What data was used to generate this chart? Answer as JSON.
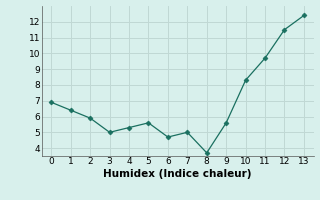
{
  "x": [
    0,
    1,
    2,
    3,
    4,
    5,
    6,
    7,
    8,
    9,
    10,
    11,
    12,
    13
  ],
  "y": [
    6.9,
    6.4,
    5.9,
    5.0,
    5.3,
    5.6,
    4.7,
    5.0,
    3.7,
    5.6,
    8.3,
    9.7,
    11.5,
    12.4
  ],
  "line_color": "#1a7060",
  "marker": "D",
  "marker_size": 2.5,
  "xlabel": "Humidex (Indice chaleur)",
  "ylim": [
    3.5,
    13
  ],
  "xlim": [
    -0.5,
    13.5
  ],
  "yticks": [
    4,
    5,
    6,
    7,
    8,
    9,
    10,
    11,
    12
  ],
  "xticks": [
    0,
    1,
    2,
    3,
    4,
    5,
    6,
    7,
    8,
    9,
    10,
    11,
    12,
    13
  ],
  "bg_color": "#d8f0ec",
  "grid_color": "#c0d8d4",
  "tick_fontsize": 6.5,
  "xlabel_fontsize": 7.5
}
